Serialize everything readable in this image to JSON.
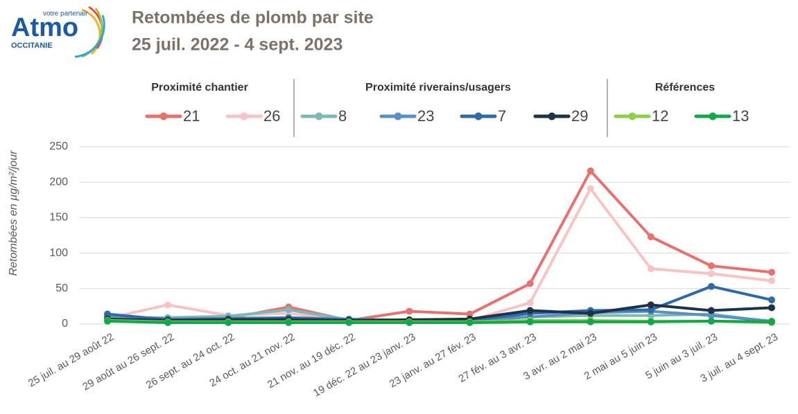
{
  "logo": {
    "name": "Atmo",
    "tagline": "votre partenair",
    "region": "OCCITANIE"
  },
  "chart_data": {
    "type": "line",
    "title": "Retombées de plomb par site",
    "subtitle": "25 juil. 2022 - 4 sept. 2023",
    "y_label": "Retombées en µg/m²/jour",
    "categories": [
      "25 juil. au 29 août 22",
      "29 août au 26 sept. 22",
      "26 sept. au 24 oct. 22",
      "24 oct. au 21 nov. 22",
      "21 nov.  au 19 déc. 22",
      "19 déc. 22 au 23 janv. 23",
      "23 janv. au 27 fév. 23",
      "27 fév. au 3 avr. 23",
      "3 avr. au 2 mai 23",
      "2 mai au 5 juin 23",
      "5 juin au 3 juil. 23",
      "3 juil. au 4 sept. 23"
    ],
    "series": [
      {
        "name": "21",
        "color": "#e8706e",
        "values": [
          10,
          5,
          8,
          24,
          5,
          18,
          14,
          57,
          216,
          123,
          82,
          73
        ]
      },
      {
        "name": "26",
        "color": "#f6c4c3",
        "values": [
          8,
          27,
          12,
          15,
          5,
          5,
          5,
          30,
          191,
          78,
          71,
          61
        ]
      },
      {
        "name": "8",
        "color": "#7fb8b6",
        "values": [
          8,
          9,
          11,
          20,
          6,
          5,
          5,
          10,
          12,
          12,
          14,
          3
        ]
      },
      {
        "name": "23",
        "color": "#5b8ec1",
        "values": [
          12,
          7,
          8,
          9,
          7,
          5,
          5,
          10,
          16,
          18,
          12,
          4
        ]
      },
      {
        "name": "7",
        "color": "#2f6aa6",
        "values": [
          14,
          6,
          7,
          8,
          6,
          5,
          5,
          15,
          19,
          20,
          53,
          34
        ]
      },
      {
        "name": "29",
        "color": "#1f3348",
        "values": [
          7,
          5,
          6,
          6,
          5,
          6,
          7,
          19,
          15,
          27,
          19,
          23
        ]
      },
      {
        "name": "12",
        "color": "#8dcf4a",
        "values": [
          5,
          3,
          3,
          3,
          3,
          3,
          3,
          5,
          5,
          4,
          4,
          2
        ]
      },
      {
        "name": "13",
        "color": "#12a84a",
        "values": [
          4,
          2,
          2,
          2,
          2,
          2,
          2,
          3,
          3,
          3,
          4,
          3
        ]
      }
    ],
    "legend_groups": [
      {
        "title": "Proximité chantier",
        "series": [
          0,
          1
        ]
      },
      {
        "title": "Proximité riverains/usagers",
        "series": [
          2,
          3,
          4,
          5
        ]
      },
      {
        "title": "Références",
        "series": [
          6,
          7
        ]
      }
    ],
    "ylim": [
      0,
      250
    ],
    "yticks": [
      0,
      50,
      100,
      150,
      200,
      250
    ],
    "grid": true
  }
}
